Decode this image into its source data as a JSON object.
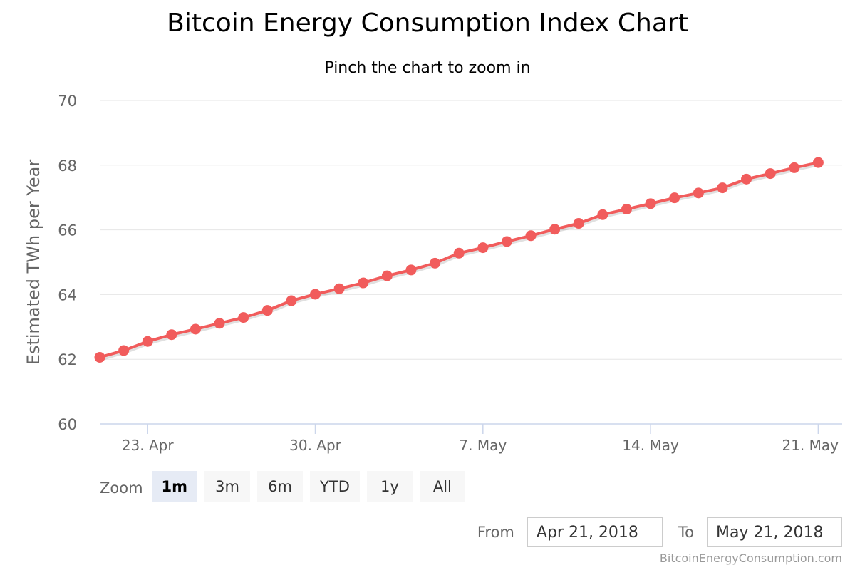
{
  "title": "Bitcoin Energy Consumption Index Chart",
  "subtitle": "Pinch the chart to zoom in",
  "chart_data": {
    "type": "line",
    "title": "Bitcoin Energy Consumption Index Chart",
    "subtitle": "Pinch the chart to zoom in",
    "xlabel": "",
    "ylabel": "Estimated TWh per Year",
    "x_type": "date",
    "x": [
      "2018-04-21",
      "2018-04-22",
      "2018-04-23",
      "2018-04-24",
      "2018-04-25",
      "2018-04-26",
      "2018-04-27",
      "2018-04-28",
      "2018-04-29",
      "2018-04-30",
      "2018-05-01",
      "2018-05-02",
      "2018-05-03",
      "2018-05-04",
      "2018-05-05",
      "2018-05-06",
      "2018-05-07",
      "2018-05-08",
      "2018-05-09",
      "2018-05-10",
      "2018-05-11",
      "2018-05-12",
      "2018-05-13",
      "2018-05-14",
      "2018-05-15",
      "2018-05-16",
      "2018-05-17",
      "2018-05-18",
      "2018-05-19",
      "2018-05-20",
      "2018-05-21"
    ],
    "xlim": [
      "2018-04-21",
      "2018-05-22"
    ],
    "x_ticks": [
      "2018-04-23",
      "2018-04-30",
      "2018-05-07",
      "2018-05-14",
      "2018-05-21"
    ],
    "x_tick_labels": [
      "23. Apr",
      "30. Apr",
      "7. May",
      "14. May",
      "21. May"
    ],
    "series": [
      {
        "values": [
          62.06,
          62.27,
          62.55,
          62.76,
          62.93,
          63.11,
          63.29,
          63.51,
          63.81,
          64.01,
          64.18,
          64.36,
          64.58,
          64.76,
          64.97,
          65.28,
          65.45,
          65.64,
          65.82,
          66.02,
          66.2,
          66.47,
          66.64,
          66.81,
          66.99,
          67.14,
          67.3,
          67.57,
          67.74,
          67.92,
          68.08
        ],
        "color": "#f15c5c"
      }
    ],
    "ylim": [
      60,
      70
    ],
    "y_ticks": [
      60,
      62,
      64,
      66,
      68,
      70
    ],
    "grid": true,
    "legend": "none"
  },
  "zoom": {
    "label": "Zoom",
    "buttons": [
      {
        "label": "1m",
        "active": true
      },
      {
        "label": "3m",
        "active": false
      },
      {
        "label": "6m",
        "active": false
      },
      {
        "label": "YTD",
        "active": false
      },
      {
        "label": "1y",
        "active": false
      },
      {
        "label": "All",
        "active": false
      }
    ]
  },
  "range": {
    "from_label": "From",
    "from_value": "Apr 21, 2018",
    "to_label": "To",
    "to_value": "May 21, 2018"
  },
  "credits": "BitcoinEnergyConsumption.com",
  "colors": {
    "line": "#f15c5c",
    "grid": "#e6e6e6",
    "axis": "#ccd6eb",
    "active_zoom_bg": "#e6ebf5",
    "zoom_bg": "#f7f7f7"
  }
}
